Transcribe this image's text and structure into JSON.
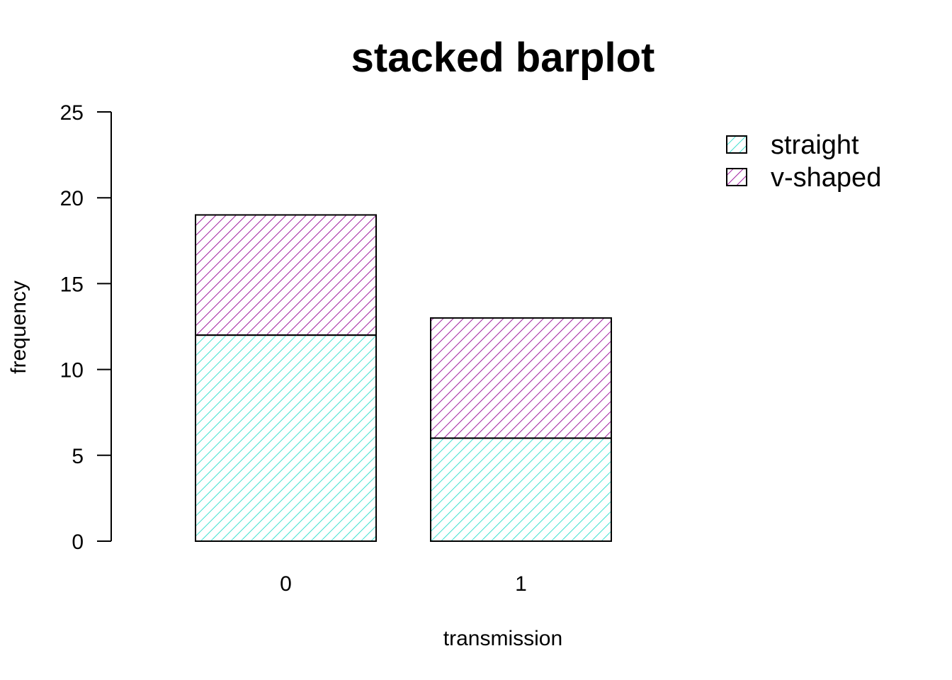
{
  "chart_data": {
    "type": "bar",
    "stacked": true,
    "title": "stacked barplot",
    "xlabel": "transmission",
    "ylabel": "frequency",
    "categories": [
      "0",
      "1"
    ],
    "ylim": [
      0,
      25
    ],
    "yticks": [
      "0",
      "5",
      "10",
      "15",
      "20",
      "25"
    ],
    "series": [
      {
        "name": "straight",
        "values": [
          12,
          6
        ],
        "color": "#40E0D0"
      },
      {
        "name": "v-shaped",
        "values": [
          7,
          7
        ],
        "color": "#A020A0"
      }
    ],
    "fill": "diagonal-hatch",
    "legend": "top-right",
    "grid": false
  }
}
